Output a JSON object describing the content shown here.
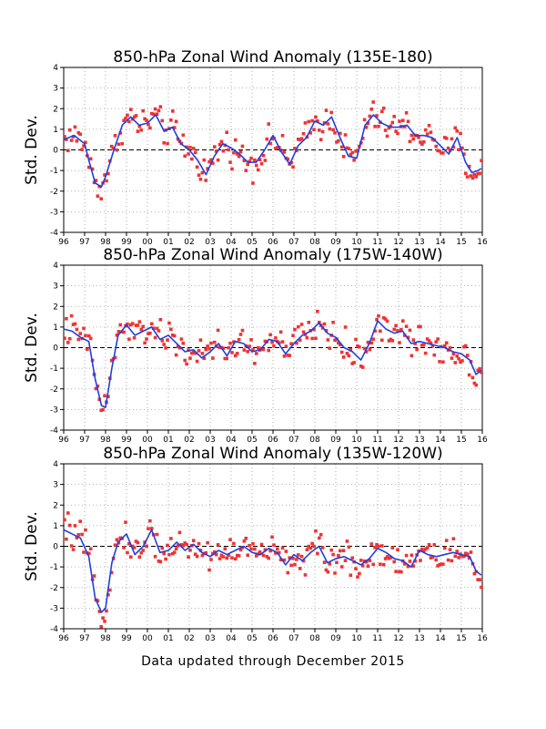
{
  "footer": "Data updated through December 2015",
  "colors": {
    "monthly": "#ee3333",
    "smoothed": "#1f3fe0",
    "zero_line": "#000000"
  },
  "chart_data": [
    {
      "type": "scatter",
      "title": "850-hPa Zonal Wind Anomaly (135E-180)",
      "ylabel": "Std. Dev.",
      "xlim": [
        1996,
        2016
      ],
      "ylim": [
        -4,
        4
      ],
      "x_ticks": [
        "96",
        "97",
        "98",
        "99",
        "00",
        "01",
        "02",
        "03",
        "04",
        "05",
        "06",
        "07",
        "08",
        "09",
        "10",
        "11",
        "12",
        "13",
        "14",
        "15",
        "16"
      ],
      "y_ticks": [
        "-4",
        "-3",
        "-2",
        "-1",
        "0",
        "1",
        "2",
        "3",
        "4"
      ],
      "grid": true,
      "series": [
        {
          "style": "points-and-smoothed-line",
          "x": [
            1996.0,
            1996.5,
            1997.0,
            1997.2,
            1997.5,
            1997.8,
            1998.0,
            1998.4,
            1998.8,
            1999.2,
            1999.6,
            2000.0,
            2000.4,
            2000.8,
            2001.2,
            2001.6,
            2002.0,
            2002.4,
            2002.8,
            2003.2,
            2003.6,
            2004.0,
            2004.4,
            2004.8,
            2005.2,
            2005.6,
            2006.0,
            2006.4,
            2006.8,
            2007.2,
            2007.6,
            2008.0,
            2008.4,
            2008.8,
            2009.2,
            2009.6,
            2010.0,
            2010.4,
            2010.8,
            2011.2,
            2011.6,
            2012.0,
            2012.4,
            2012.8,
            2013.2,
            2013.6,
            2014.0,
            2014.4,
            2014.8,
            2015.2,
            2015.5,
            2015.8,
            2015.95
          ],
          "y": [
            0.5,
            0.7,
            0.3,
            -0.5,
            -1.6,
            -1.8,
            -1.3,
            0.0,
            1.2,
            1.6,
            1.2,
            1.3,
            1.7,
            0.9,
            1.1,
            0.3,
            0.0,
            -0.5,
            -1.2,
            -0.3,
            0.3,
            0.1,
            -0.2,
            -0.6,
            -0.6,
            0.0,
            0.7,
            -0.1,
            -0.7,
            0.2,
            0.6,
            1.4,
            1.2,
            1.6,
            0.6,
            -0.3,
            -0.4,
            1.2,
            1.7,
            1.3,
            1.1,
            1.1,
            1.2,
            0.7,
            0.7,
            0.6,
            0.2,
            -0.2,
            0.6,
            -0.6,
            -1.1,
            -1.0,
            -0.9
          ]
        }
      ]
    },
    {
      "type": "scatter",
      "title": "850-hPa Zonal Wind Anomaly (175W-140W)",
      "ylabel": "Std. Dev.",
      "xlim": [
        1996,
        2016
      ],
      "ylim": [
        -4,
        4
      ],
      "x_ticks": [
        "96",
        "97",
        "98",
        "99",
        "00",
        "01",
        "02",
        "03",
        "04",
        "05",
        "06",
        "07",
        "08",
        "09",
        "10",
        "11",
        "12",
        "13",
        "14",
        "15",
        "16"
      ],
      "y_ticks": [
        "-4",
        "-3",
        "-2",
        "-1",
        "0",
        "1",
        "2",
        "3",
        "4"
      ],
      "grid": true,
      "series": [
        {
          "style": "points-and-smoothed-line",
          "x": [
            1996.0,
            1996.4,
            1996.8,
            1997.2,
            1997.5,
            1997.8,
            1998.0,
            1998.3,
            1998.6,
            1999.0,
            1999.4,
            1999.8,
            2000.2,
            2000.6,
            2001.0,
            2001.4,
            2001.8,
            2002.2,
            2002.6,
            2003.0,
            2003.4,
            2003.8,
            2004.2,
            2004.6,
            2005.0,
            2005.4,
            2005.8,
            2006.2,
            2006.6,
            2007.0,
            2007.4,
            2007.8,
            2008.2,
            2008.6,
            2009.0,
            2009.4,
            2009.8,
            2010.2,
            2010.6,
            2011.0,
            2011.4,
            2011.8,
            2012.2,
            2012.6,
            2013.0,
            2013.4,
            2013.8,
            2014.2,
            2014.6,
            2015.0,
            2015.4,
            2015.7,
            2015.95
          ],
          "y": [
            0.9,
            0.8,
            0.5,
            0.3,
            -1.5,
            -2.8,
            -2.9,
            -1.0,
            0.6,
            1.1,
            0.6,
            0.8,
            1.0,
            0.4,
            0.6,
            0.2,
            -0.2,
            -0.1,
            -0.5,
            -0.2,
            0.2,
            -0.4,
            0.3,
            0.2,
            -0.2,
            -0.1,
            0.4,
            0.3,
            -0.3,
            0.2,
            0.6,
            0.8,
            1.2,
            0.7,
            0.5,
            0.0,
            -0.2,
            -0.6,
            0.2,
            1.3,
            0.9,
            0.7,
            0.8,
            0.2,
            0.3,
            0.2,
            0.1,
            0.0,
            -0.2,
            -0.3,
            -0.6,
            -1.3,
            -1.1
          ]
        }
      ]
    },
    {
      "type": "scatter",
      "title": "850-hPa Zonal Wind Anomaly (135W-120W)",
      "ylabel": "Std. Dev.",
      "xlim": [
        1996,
        2016
      ],
      "ylim": [
        -4,
        4
      ],
      "x_ticks": [
        "96",
        "97",
        "98",
        "99",
        "00",
        "01",
        "02",
        "03",
        "04",
        "05",
        "06",
        "07",
        "08",
        "09",
        "10",
        "11",
        "12",
        "13",
        "14",
        "15",
        "16"
      ],
      "y_ticks": [
        "-4",
        "-3",
        "-2",
        "-1",
        "0",
        "1",
        "2",
        "3",
        "4"
      ],
      "grid": true,
      "series": [
        {
          "style": "points-and-smoothed-line",
          "x": [
            1996.0,
            1996.4,
            1996.8,
            1997.2,
            1997.5,
            1997.8,
            1998.0,
            1998.3,
            1998.6,
            1999.0,
            1999.4,
            1999.8,
            2000.2,
            2000.6,
            2001.0,
            2001.4,
            2001.8,
            2002.2,
            2002.6,
            2003.0,
            2003.4,
            2003.8,
            2004.2,
            2004.6,
            2005.0,
            2005.4,
            2005.8,
            2006.2,
            2006.6,
            2007.0,
            2007.4,
            2007.8,
            2008.2,
            2008.6,
            2009.0,
            2009.4,
            2009.8,
            2010.2,
            2010.6,
            2011.0,
            2011.4,
            2011.8,
            2012.2,
            2012.6,
            2013.0,
            2013.4,
            2013.8,
            2014.2,
            2014.6,
            2015.0,
            2015.4,
            2015.7,
            2015.95
          ],
          "y": [
            0.8,
            0.6,
            0.4,
            -0.5,
            -2.5,
            -3.2,
            -3.0,
            -0.8,
            0.2,
            0.6,
            -0.4,
            0.0,
            0.8,
            -0.3,
            -0.2,
            0.2,
            -0.2,
            0.1,
            -0.3,
            -0.5,
            -0.2,
            -0.4,
            -0.2,
            0.0,
            -0.3,
            -0.4,
            -0.1,
            -0.3,
            -0.9,
            -0.4,
            -0.7,
            -0.3,
            0.0,
            -0.8,
            -0.6,
            -0.5,
            -0.7,
            -0.9,
            -0.6,
            -0.1,
            -0.3,
            -0.6,
            -0.7,
            -1.0,
            -0.2,
            -0.4,
            -0.5,
            -0.4,
            -0.3,
            -0.4,
            -0.5,
            -1.2,
            -1.4
          ]
        }
      ]
    }
  ]
}
